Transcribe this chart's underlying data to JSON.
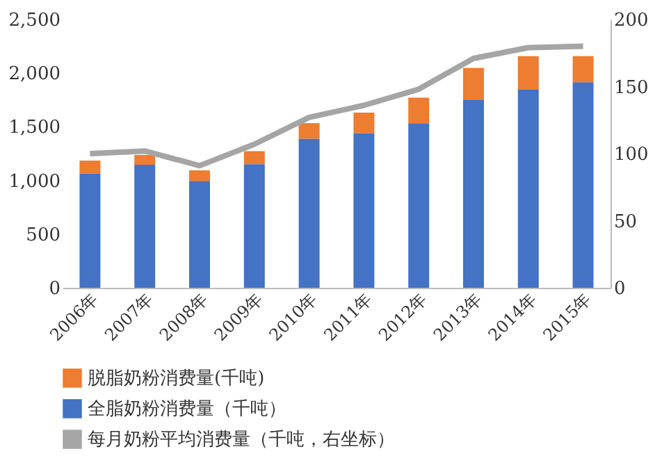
{
  "chart_data": {
    "type": "bar",
    "stacked": true,
    "categories": [
      "2006年",
      "2007年",
      "2008年",
      "2009年",
      "2010年",
      "2011年",
      "2012年",
      "2013年",
      "2014年",
      "2015年"
    ],
    "series": [
      {
        "name": "全脂奶粉消费量（千吨）",
        "color": "#4472c4",
        "values": [
          1065,
          1146,
          995,
          1152,
          1389,
          1441,
          1534,
          1753,
          1846,
          1915
        ]
      },
      {
        "name": "脱脂奶粉消费量(千吨)",
        "color": "#ed7d31",
        "values": [
          120,
          92,
          99,
          121,
          145,
          191,
          237,
          296,
          313,
          244
        ]
      },
      {
        "name": "每月奶粉平均消费量（千吨，右坐标）",
        "color": "#a5a5a5",
        "type": "line",
        "axis": "y2",
        "values": [
          100,
          102,
          91,
          107,
          127,
          136,
          148,
          171,
          179,
          180
        ]
      }
    ],
    "ylim": [
      0,
      2500
    ],
    "yticks": [
      0,
      {
        "value": 500,
        "label": "500"
      },
      {
        "value": 1000,
        "label": "1,000"
      },
      {
        "value": 1500,
        "label": "1,500"
      },
      {
        "value": 2000,
        "label": "2,000"
      },
      {
        "value": 2500,
        "label": "2,500"
      }
    ],
    "y2lim": [
      0,
      200
    ],
    "y2ticks": [
      0,
      50,
      100,
      150,
      200
    ],
    "legend": "bottom",
    "grid": false
  }
}
